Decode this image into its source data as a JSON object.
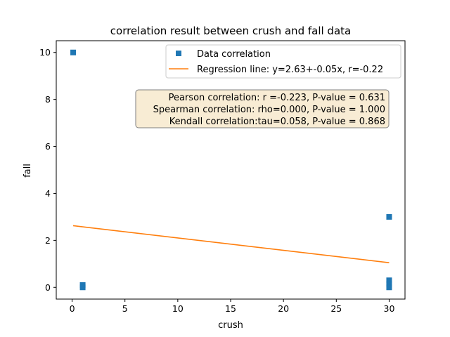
{
  "chart_data": {
    "type": "scatter",
    "title": "correlation result between crush and fall data",
    "xlabel": "crush",
    "ylabel": "fall",
    "xlim": [
      -1.5,
      31.5
    ],
    "ylim": [
      -0.5,
      10.5
    ],
    "xticks": [
      0,
      5,
      10,
      15,
      20,
      25,
      30
    ],
    "yticks": [
      0,
      2,
      4,
      6,
      8,
      10
    ],
    "grid": false,
    "legend_position": "top-right",
    "series": [
      {
        "name": "Data correlation",
        "kind": "scatter",
        "marker": "square",
        "color": "#1f77b4",
        "points": [
          {
            "x": 0.1,
            "y": 10.0
          },
          {
            "x": 1.0,
            "y": 0.1
          },
          {
            "x": 1.0,
            "y": 0.0
          },
          {
            "x": 30.0,
            "y": 3.0
          },
          {
            "x": 30.0,
            "y": 0.3
          },
          {
            "x": 30.0,
            "y": 0.15
          },
          {
            "x": 30.0,
            "y": 0.0
          }
        ]
      },
      {
        "name": "Regression line: y=2.63+-0.05x, r=-0.22",
        "kind": "line",
        "color": "#ff7f0e",
        "points": [
          {
            "x": 0.1,
            "y": 2.625
          },
          {
            "x": 30.0,
            "y": 1.05
          }
        ]
      }
    ],
    "annotation": {
      "lines": [
        "Pearson correlation: r =-0.223, P-value = 0.631",
        "Spearman correlation: rho=0.000, P-value = 1.000",
        "Kendall correlation:tau=0.058, P-value = 0.868"
      ],
      "background": "#f8ecd4",
      "border": "#7f7f7f"
    }
  }
}
